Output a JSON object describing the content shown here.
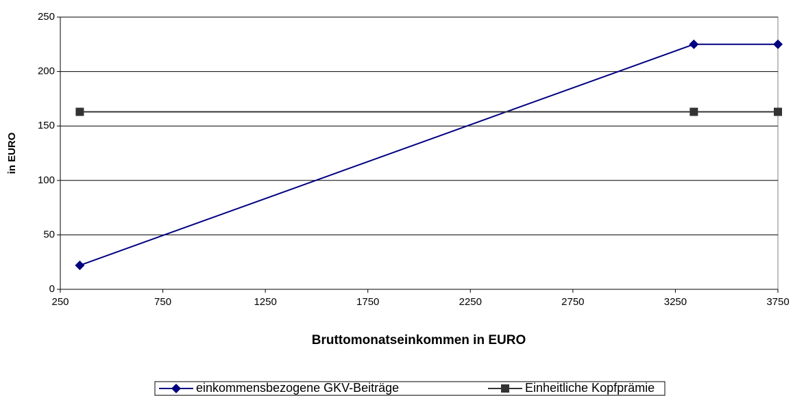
{
  "chart_data": {
    "type": "line",
    "x_label": "Bruttomonatseinkommen in EURO",
    "y_label": "in EURO",
    "series": [
      {
        "name": "einkommensbezogene GKV-Beiträge",
        "color": "#000080",
        "marker": "diamond",
        "x": [
          345,
          3340,
          3750
        ],
        "values": [
          22,
          225,
          225
        ]
      },
      {
        "name": "Einheitliche Kopfprämie",
        "color": "#333333",
        "marker": "square",
        "x": [
          345,
          3340,
          3750
        ],
        "values": [
          163,
          163,
          163
        ]
      }
    ],
    "xlim": [
      250,
      3750
    ],
    "xticks": [
      250,
      750,
      1250,
      1750,
      2250,
      2750,
      3250,
      3750
    ],
    "ylim": [
      0,
      250
    ],
    "yticks": [
      0,
      50,
      100,
      150,
      200,
      250
    ],
    "grid": true,
    "legend": "bottom"
  }
}
